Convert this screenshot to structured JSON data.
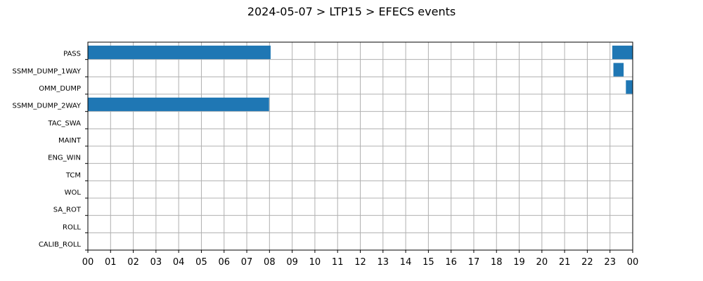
{
  "chart_data": {
    "type": "bar",
    "orientation": "horizontal-timeline",
    "title": "2024-05-07 > LTP15 > EFECS events",
    "categories": [
      "PASS",
      "SSMM_DUMP_1WAY",
      "OMM_DUMP",
      "SSMM_DUMP_2WAY",
      "TAC_SWA",
      "MAINT",
      "ENG_WIN",
      "TCM",
      "WOL",
      "SA_ROT",
      "ROLL",
      "CALIB_ROLL"
    ],
    "x_tick_labels": [
      "00",
      "01",
      "02",
      "03",
      "04",
      "05",
      "06",
      "07",
      "08",
      "09",
      "10",
      "11",
      "12",
      "13",
      "14",
      "15",
      "16",
      "17",
      "18",
      "19",
      "20",
      "21",
      "22",
      "23",
      "00"
    ],
    "xlim_hours": [
      0,
      24
    ],
    "grid": true,
    "bar_color": "#1f77b4",
    "events": [
      {
        "category": "PASS",
        "start_hour": 0.0,
        "end_hour": 8.05
      },
      {
        "category": "PASS",
        "start_hour": 23.1,
        "end_hour": 24.0
      },
      {
        "category": "SSMM_DUMP_1WAY",
        "start_hour": 23.15,
        "end_hour": 23.6
      },
      {
        "category": "OMM_DUMP",
        "start_hour": 23.7,
        "end_hour": 24.0
      },
      {
        "category": "SSMM_DUMP_2WAY",
        "start_hour": 0.0,
        "end_hour": 7.98
      }
    ]
  }
}
